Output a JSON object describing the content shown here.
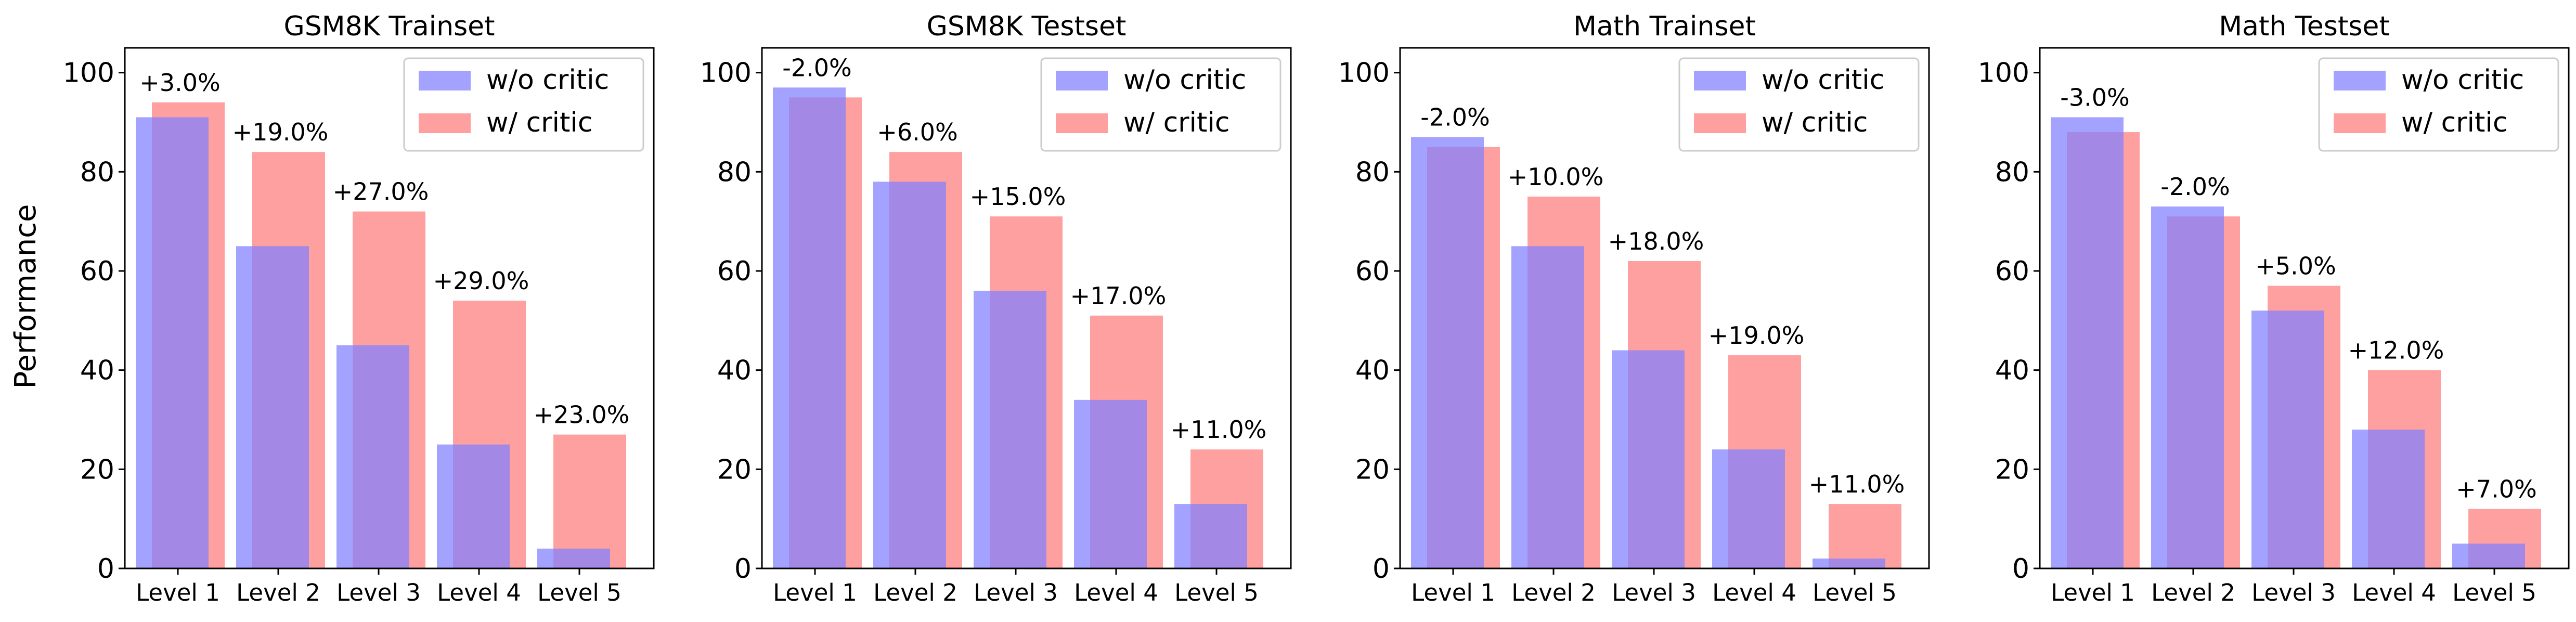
{
  "figure": {
    "ylabel": "Performance"
  },
  "colors": {
    "without_critic": "#7f7fff",
    "with_critic": "#ff8080"
  },
  "chart_data": [
    {
      "type": "bar",
      "title": "GSM8K Trainset",
      "categories": [
        "Level 1",
        "Level 2",
        "Level 3",
        "Level 4",
        "Level 5"
      ],
      "series": [
        {
          "name": "w/o critic",
          "values": [
            91,
            65,
            45,
            25,
            4
          ]
        },
        {
          "name": "w/ critic",
          "values": [
            94,
            84,
            72,
            54,
            27
          ]
        }
      ],
      "annotations": [
        "+3.0%",
        "+19.0%",
        "+27.0%",
        "+29.0%",
        "+23.0%"
      ],
      "ylim": [
        0,
        105
      ],
      "yticks": [
        0,
        20,
        40,
        60,
        80,
        100
      ],
      "legend": "top-right",
      "grid": false
    },
    {
      "type": "bar",
      "title": "GSM8K Testset",
      "categories": [
        "Level 1",
        "Level 2",
        "Level 3",
        "Level 4",
        "Level 5"
      ],
      "series": [
        {
          "name": "w/o critic",
          "values": [
            97,
            78,
            56,
            34,
            13
          ]
        },
        {
          "name": "w/ critic",
          "values": [
            95,
            84,
            71,
            51,
            24
          ]
        }
      ],
      "annotations": [
        "-2.0%",
        "+6.0%",
        "+15.0%",
        "+17.0%",
        "+11.0%"
      ],
      "ylim": [
        0,
        105
      ],
      "yticks": [
        0,
        20,
        40,
        60,
        80,
        100
      ],
      "legend": "top-right",
      "grid": false
    },
    {
      "type": "bar",
      "title": "Math Trainset",
      "categories": [
        "Level 1",
        "Level 2",
        "Level 3",
        "Level 4",
        "Level 5"
      ],
      "series": [
        {
          "name": "w/o critic",
          "values": [
            87,
            65,
            44,
            24,
            2
          ]
        },
        {
          "name": "w/ critic",
          "values": [
            85,
            75,
            62,
            43,
            13
          ]
        }
      ],
      "annotations": [
        "-2.0%",
        "+10.0%",
        "+18.0%",
        "+19.0%",
        "+11.0%"
      ],
      "ylim": [
        0,
        105
      ],
      "yticks": [
        0,
        20,
        40,
        60,
        80,
        100
      ],
      "legend": "top-right",
      "grid": false
    },
    {
      "type": "bar",
      "title": "Math Testset",
      "categories": [
        "Level 1",
        "Level 2",
        "Level 3",
        "Level 4",
        "Level 5"
      ],
      "series": [
        {
          "name": "w/o critic",
          "values": [
            91,
            73,
            52,
            28,
            5
          ]
        },
        {
          "name": "w/ critic",
          "values": [
            88,
            71,
            57,
            40,
            12
          ]
        }
      ],
      "annotations": [
        "-3.0%",
        "-2.0%",
        "+5.0%",
        "+12.0%",
        "+7.0%"
      ],
      "ylim": [
        0,
        105
      ],
      "yticks": [
        0,
        20,
        40,
        60,
        80,
        100
      ],
      "legend": "top-right",
      "grid": false
    }
  ]
}
